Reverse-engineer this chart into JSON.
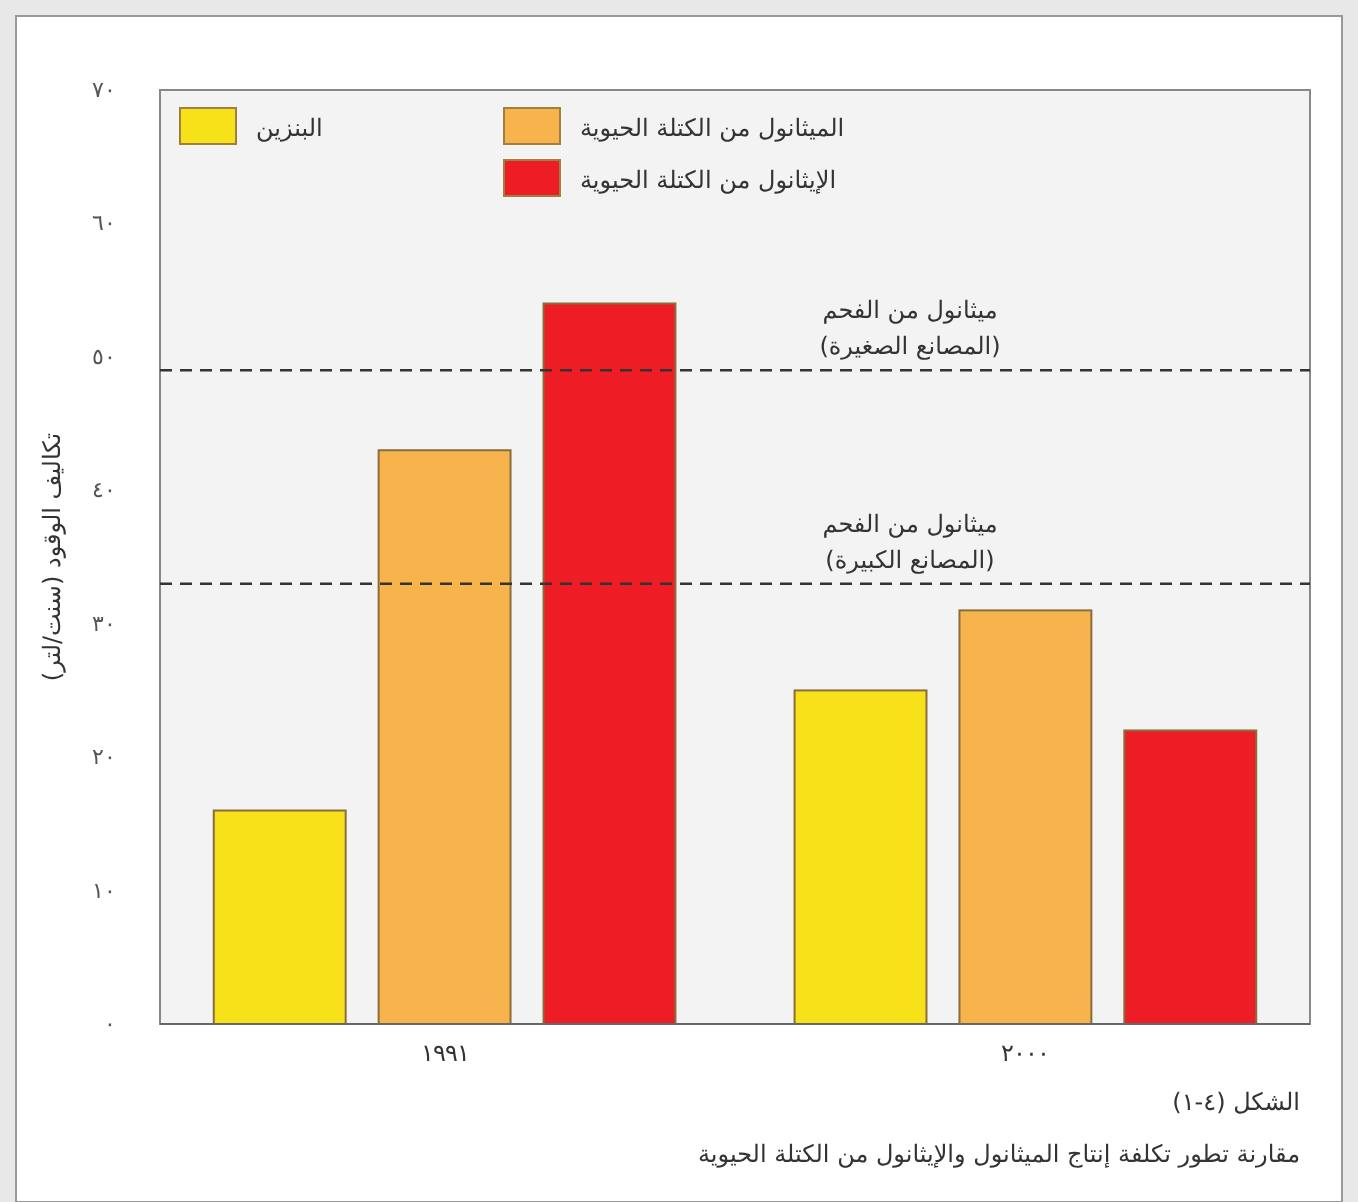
{
  "chart_data": {
    "type": "bar",
    "ylabel": "تكاليف الوقود (سنت/لتر)",
    "categories": [
      "١٩٩١",
      "٢٠٠٠"
    ],
    "series": [
      {
        "name": "البنزين",
        "color": "#f7e21a",
        "values": [
          16,
          25
        ]
      },
      {
        "name": "الميثانول من الكتلة الحيوية",
        "color": "#f8b44c",
        "values": [
          43,
          31
        ]
      },
      {
        "name": "الإيثانول من الكتلة الحيوية",
        "color": "#ee1c25",
        "values": [
          54,
          22
        ]
      }
    ],
    "ylim": [
      0,
      70
    ],
    "yticks": [
      {
        "value": 0,
        "label": "٠"
      },
      {
        "value": 10,
        "label": "١٠"
      },
      {
        "value": 20,
        "label": "٢٠"
      },
      {
        "value": 30,
        "label": "٣٠"
      },
      {
        "value": 40,
        "label": "٤٠"
      },
      {
        "value": 50,
        "label": "٥٠"
      },
      {
        "value": 60,
        "label": "٦٠"
      },
      {
        "value": 70,
        "label": "٧٠"
      }
    ],
    "ref_lines": [
      {
        "axis": "y",
        "value": 49,
        "label": "ميثانول من الفحم\n(المصانع الصغيرة)",
        "line_style": "dashed"
      },
      {
        "axis": "y",
        "value": 33,
        "label": "ميثانول من الفحم\n(المصانع الكبيرة)",
        "line_style": "dashed"
      }
    ],
    "annotations": [
      "الشكل (٤-١)",
      "مقارنة تطور تكلفة إنتاج الميثانول والإيثانول من الكتلة الحيوية"
    ],
    "legend": "top",
    "grid": false
  }
}
